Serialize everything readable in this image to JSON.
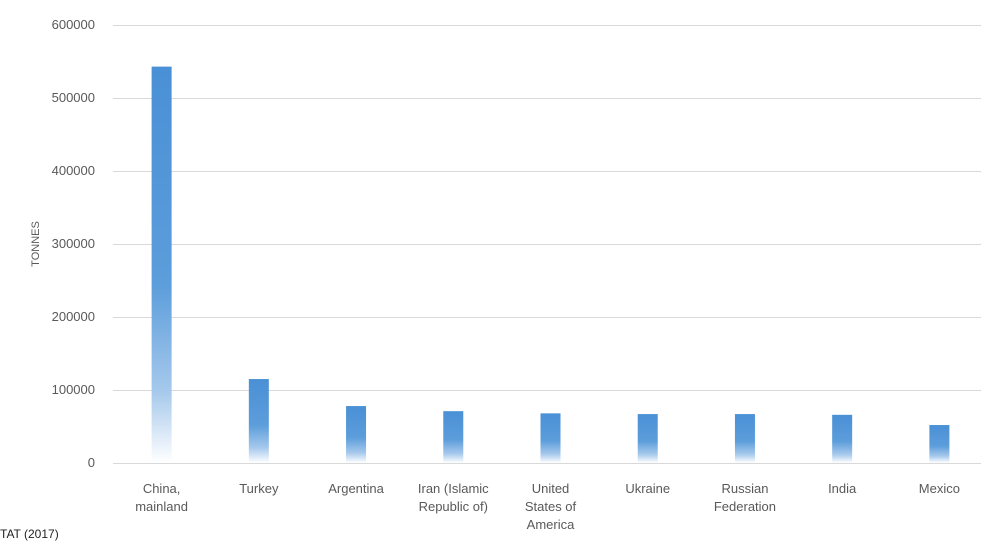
{
  "chart_data": {
    "type": "bar",
    "title": "",
    "xlabel": "",
    "ylabel": "TONNES",
    "categories": [
      "China, mainland",
      "Turkey",
      "Argentina",
      "Iran (Islamic Republic of)",
      "United States of America",
      "Ukraine",
      "Russian Federation",
      "India",
      "Mexico"
    ],
    "category_lines": [
      [
        "China,",
        "mainland"
      ],
      [
        "Turkey"
      ],
      [
        "Argentina"
      ],
      [
        "Iran (Islamic",
        "Republic of)"
      ],
      [
        "United",
        "States of",
        "America"
      ],
      [
        "Ukraine"
      ],
      [
        "Russian",
        "Federation"
      ],
      [
        "India"
      ],
      [
        "Mexico"
      ]
    ],
    "values": [
      543000,
      115000,
      78000,
      71000,
      68000,
      67000,
      67000,
      66000,
      52000
    ],
    "ylim": [
      0,
      600000
    ],
    "yticks": [
      0,
      100000,
      200000,
      300000,
      400000,
      500000,
      600000
    ],
    "ytick_labels": [
      "0",
      "100000",
      "200000",
      "300000",
      "400000",
      "500000",
      "600000"
    ],
    "grid": true,
    "legend": false,
    "bar_color": "#4a90d6"
  },
  "source_note": "TAT (2017)"
}
